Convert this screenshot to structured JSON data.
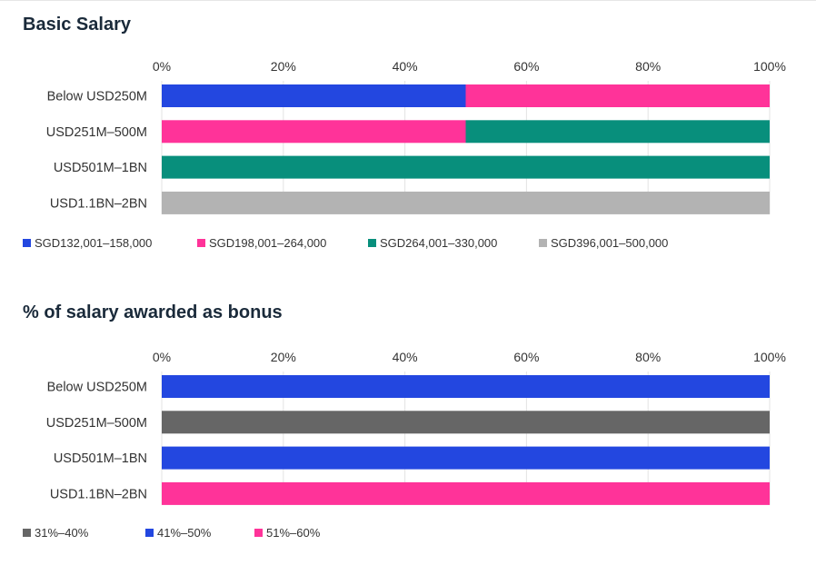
{
  "chart_data": [
    {
      "type": "bar",
      "orientation": "horizontal",
      "stacked": true,
      "title": "Basic Salary",
      "categories": [
        "Below USD250M",
        "USD251M–500M",
        "USD501M–1BN",
        "USD1.1BN–2BN"
      ],
      "xlim": [
        0,
        100
      ],
      "x_ticks": [
        "0%",
        "20%",
        "40%",
        "60%",
        "80%",
        "100%"
      ],
      "grid": true,
      "legend_position": "bottom-left",
      "series": [
        {
          "name": "SGD132,001–158,000",
          "color": "#2347E0",
          "values": [
            50,
            0,
            0,
            0
          ]
        },
        {
          "name": "SGD198,001–264,000",
          "color": "#FF3399",
          "values": [
            50,
            50,
            0,
            0
          ]
        },
        {
          "name": "SGD264,001–330,000",
          "color": "#088F7C",
          "values": [
            0,
            50,
            100,
            0
          ]
        },
        {
          "name": "SGD396,001–500,000",
          "color": "#B3B3B3",
          "values": [
            0,
            0,
            0,
            100
          ]
        }
      ]
    },
    {
      "type": "bar",
      "orientation": "horizontal",
      "stacked": true,
      "title": "% of salary awarded as bonus",
      "categories": [
        "Below USD250M",
        "USD251M–500M",
        "USD501M–1BN",
        "USD1.1BN–2BN"
      ],
      "xlim": [
        0,
        100
      ],
      "x_ticks": [
        "0%",
        "20%",
        "40%",
        "60%",
        "80%",
        "100%"
      ],
      "grid": true,
      "legend_position": "bottom-left",
      "series": [
        {
          "name": "31%–40%",
          "color": "#666666",
          "values": [
            0,
            100,
            0,
            0
          ]
        },
        {
          "name": "41%–50%",
          "color": "#2347E0",
          "values": [
            100,
            0,
            100,
            0
          ]
        },
        {
          "name": "51%–60%",
          "color": "#FF3399",
          "values": [
            0,
            0,
            0,
            100
          ]
        }
      ]
    }
  ]
}
